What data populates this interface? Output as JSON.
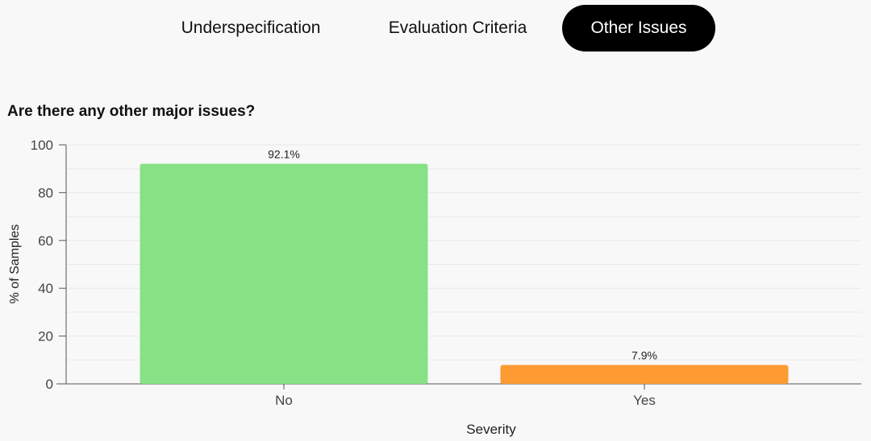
{
  "tabs": [
    {
      "label": "Underspecification",
      "active": false
    },
    {
      "label": "Evaluation Criteria",
      "active": false
    },
    {
      "label": "Other Issues",
      "active": true
    }
  ],
  "colors": {
    "active_tab_bg": "#000000",
    "bar_no": "#86e285",
    "bar_yes": "#fd9b32"
  },
  "chart_data": {
    "type": "bar",
    "title": "Are there any other major issues?",
    "xlabel": "Severity",
    "ylabel": "% of Samples",
    "categories": [
      "No",
      "Yes"
    ],
    "values": [
      92.1,
      7.9
    ],
    "data_labels": [
      "92.1%",
      "7.9%"
    ],
    "bar_colors": [
      "#86e285",
      "#fd9b32"
    ],
    "ylim": [
      0,
      100
    ],
    "yticks": [
      0,
      20,
      40,
      60,
      80,
      100
    ],
    "grid": true,
    "legend": "none"
  }
}
